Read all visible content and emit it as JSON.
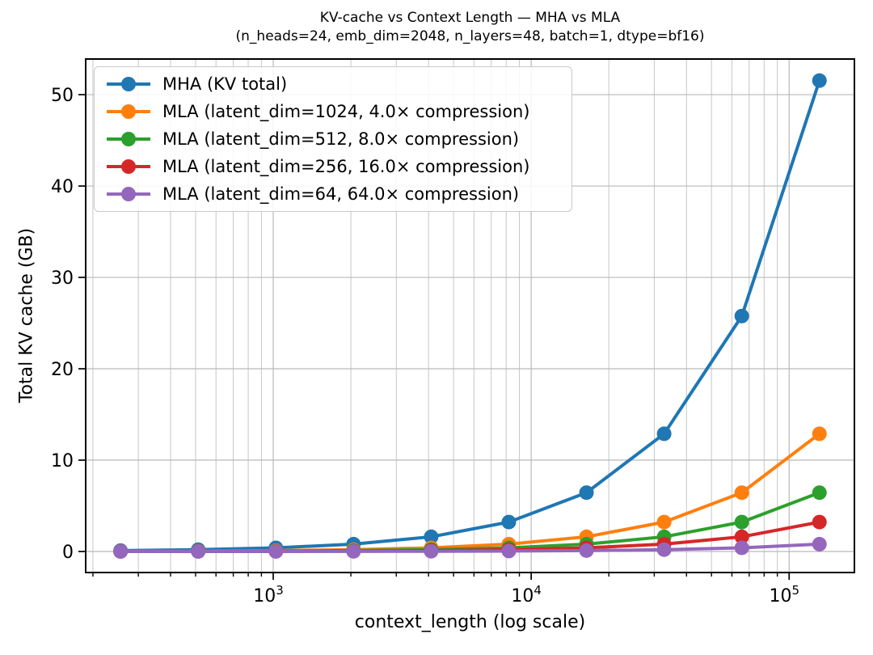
{
  "chart_data": {
    "type": "line",
    "title": "KV-cache vs Context Length — MHA vs MLA",
    "subtitle": "(n_heads=24, emb_dim=2048, n_layers=48, batch=1, dtype=bf16)",
    "xlabel": "context_length (log scale)",
    "ylabel": "Total KV cache (GB)",
    "x_scale": "log",
    "x": [
      256,
      512,
      1024,
      2048,
      4096,
      8192,
      16384,
      32768,
      65536,
      131072
    ],
    "series": [
      {
        "name": "MHA (KV total)",
        "color": "#1f77b4",
        "values": [
          0.101,
          0.201,
          0.403,
          0.805,
          1.611,
          3.221,
          6.442,
          12.885,
          25.77,
          51.54
        ]
      },
      {
        "name": "MLA (latent_dim=1024, 4.0× compression)",
        "color": "#ff7f0e",
        "values": [
          0.025,
          0.05,
          0.101,
          0.201,
          0.403,
          0.805,
          1.611,
          3.221,
          6.442,
          12.885
        ]
      },
      {
        "name": "MLA (latent_dim=512, 8.0× compression)",
        "color": "#2ca02c",
        "values": [
          0.013,
          0.025,
          0.05,
          0.101,
          0.201,
          0.403,
          0.805,
          1.611,
          3.221,
          6.442
        ]
      },
      {
        "name": "MLA (latent_dim=256, 16.0× compression)",
        "color": "#d62728",
        "values": [
          0.006,
          0.013,
          0.025,
          0.05,
          0.101,
          0.201,
          0.403,
          0.805,
          1.611,
          3.221
        ]
      },
      {
        "name": "MLA (latent_dim=64, 64.0× compression)",
        "color": "#9467bd",
        "values": [
          0.002,
          0.003,
          0.006,
          0.013,
          0.025,
          0.05,
          0.101,
          0.201,
          0.403,
          0.805
        ]
      }
    ],
    "axes": {
      "x_major_ticks": [
        {
          "base": "10",
          "exp": "3",
          "value": 1000
        },
        {
          "base": "10",
          "exp": "4",
          "value": 10000
        },
        {
          "base": "10",
          "exp": "5",
          "value": 100000
        }
      ],
      "x_minor_exponents": [
        2,
        3,
        4,
        5
      ],
      "y_ticks": [
        0,
        10,
        20,
        30,
        40,
        50
      ],
      "xlim_log": [
        2.273,
        5.253
      ],
      "ylim": [
        -2.3,
        53.9
      ],
      "grid": "x-major+minor, y-major",
      "grid_major_color": "#b9b9b9",
      "grid_minor_color": "#c6c6c6",
      "frame_color": "#000000"
    },
    "legend_position": "upper left"
  }
}
